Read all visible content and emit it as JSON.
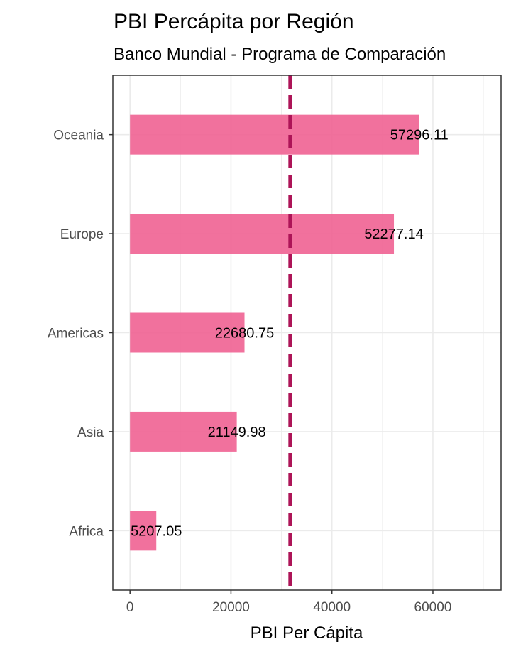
{
  "chart_data": {
    "type": "bar",
    "orientation": "horizontal",
    "title": "PBI Percápita por Región",
    "subtitle": "Banco Mundial - Programa de Comparación",
    "xlabel": "PBI Per Cápita",
    "ylabel": "",
    "categories": [
      "Oceania",
      "Europe",
      "Americas",
      "Asia",
      "Africa"
    ],
    "values": [
      57296.11,
      52277.14,
      22680.75,
      21149.98,
      5207.05
    ],
    "data_labels": [
      "57296.11",
      "52277.14",
      "22680.75",
      "21149.98",
      "5207.05"
    ],
    "x_ticks": [
      0,
      20000,
      40000,
      60000
    ],
    "x_tick_labels": [
      "0",
      "20000",
      "40000",
      "60000"
    ],
    "xlim": [
      -3400,
      73500
    ],
    "reference_line": {
      "value": 31722.2,
      "style": "dashed"
    },
    "grid": true,
    "bar_color": "#f06292",
    "line_color": "#ad1457",
    "grid_color": "#ebebeb",
    "panel_border_color": "#333333"
  }
}
